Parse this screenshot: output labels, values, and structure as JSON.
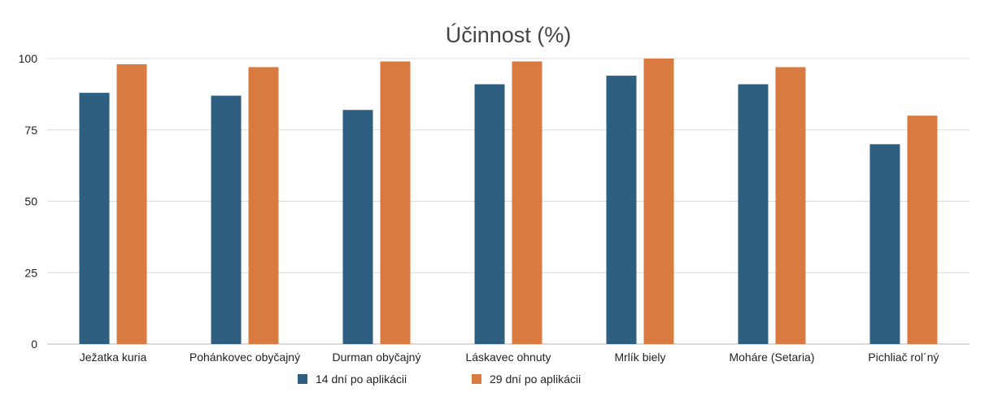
{
  "chart_data": {
    "type": "bar",
    "title": "Účinnost (%)",
    "xlabel": "",
    "ylabel": "",
    "ylim": [
      0,
      100
    ],
    "yticks": [
      0,
      25,
      50,
      75,
      100
    ],
    "grid": true,
    "legend_position": "bottom",
    "categories": [
      "Ježatka kuria",
      "Pohánkovec obyčajný",
      "Durman obyčajný",
      "Láskavec ohnuty",
      "Mrlík biely",
      "Moháre (Setaria)",
      "Pichliač rol´ný"
    ],
    "series": [
      {
        "name": "14 dní po aplikácii",
        "color": "#2e5e80",
        "values": [
          88,
          87,
          82,
          91,
          94,
          91,
          70
        ]
      },
      {
        "name": "29 dní po aplikácii",
        "color": "#d97a40",
        "values": [
          98,
          97,
          99,
          99,
          100,
          97,
          80
        ]
      }
    ]
  }
}
